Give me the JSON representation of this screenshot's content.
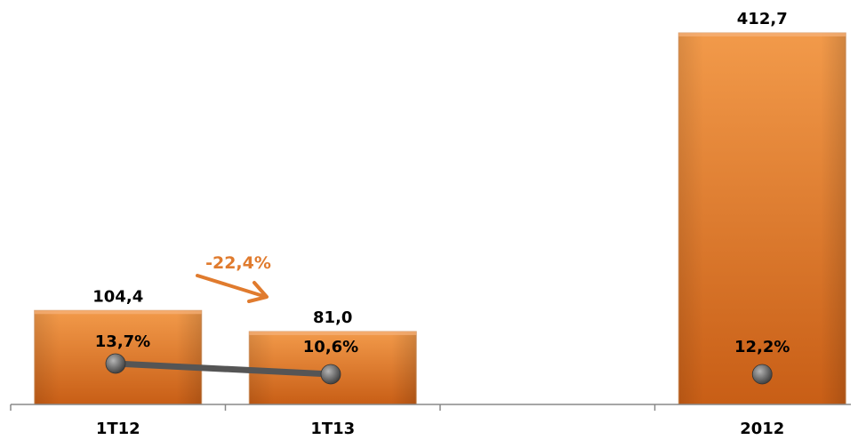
{
  "chart_data": {
    "type": "bar",
    "categories": [
      "1T12",
      "1T13",
      "",
      "2012"
    ],
    "series": [
      {
        "type": "bar",
        "values": [
          104.4,
          81.0,
          null,
          412.7
        ],
        "labels": [
          "104,4",
          "81,0",
          "",
          "412,7"
        ],
        "color": "#E8792A"
      },
      {
        "type": "line",
        "values": [
          13.7,
          10.6,
          null,
          12.2
        ],
        "labels": [
          "13,7%",
          "10,6%",
          "",
          "12,2%"
        ],
        "color": "#555555"
      }
    ],
    "annotations": [
      {
        "text": "-22,4%",
        "color": "#E07B2E",
        "arrow": true
      }
    ],
    "title": "",
    "xlabel": "",
    "ylabel": "",
    "ylim": [
      0,
      412.7
    ],
    "grid": false,
    "legend": "none"
  }
}
